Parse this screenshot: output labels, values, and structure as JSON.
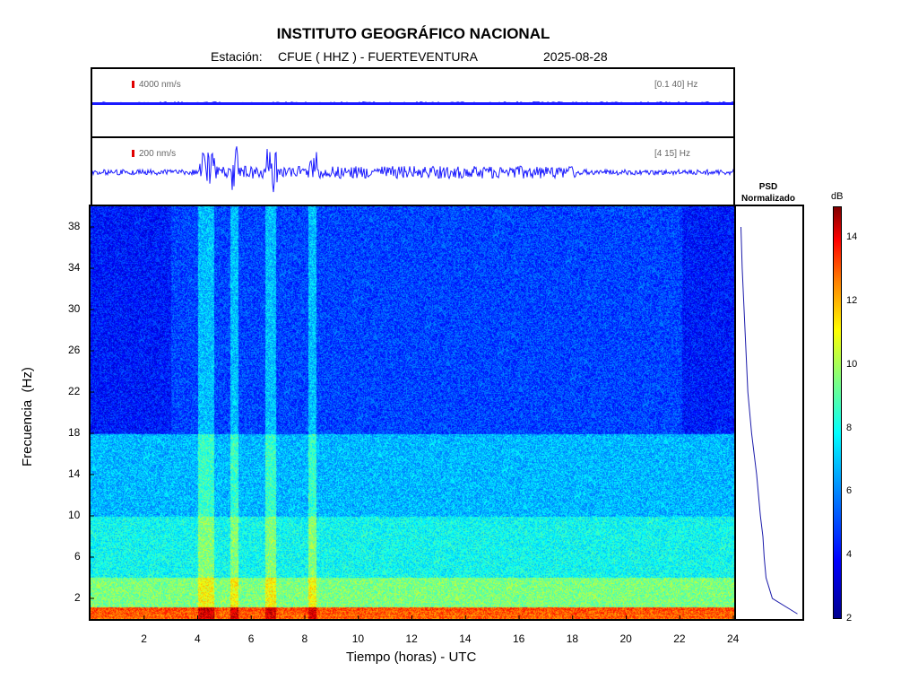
{
  "header": {
    "title": "INSTITUTO GEOGRÁFICO NACIONAL",
    "station_prefix": "Estación:",
    "station": "CFUE ( HHZ ) - FUERTEVENTURA",
    "date": "2025-08-28"
  },
  "trace1": {
    "scale": "4000 nm/s",
    "band": "[0.1 40] Hz"
  },
  "trace2": {
    "scale": "200 nm/s",
    "band": "[4 15] Hz"
  },
  "psd": {
    "line1": "PSD",
    "line2": "Normalizado"
  },
  "colorbar": {
    "unit": "dB",
    "min": 2,
    "max": 15,
    "ticks": [
      "2",
      "4",
      "6",
      "8",
      "10",
      "12",
      "14"
    ]
  },
  "chart_data": {
    "type": "heatmap",
    "title": "INSTITUTO GEOGRÁFICO NACIONAL",
    "xlabel": "Tiempo (horas) - UTC",
    "ylabel": "Frecuencia  (Hz)",
    "xlim": [
      0,
      24
    ],
    "ylim": [
      0,
      40
    ],
    "xticks": [
      "2",
      "4",
      "6",
      "8",
      "10",
      "12",
      "14",
      "16",
      "18",
      "20",
      "22",
      "24"
    ],
    "yticks": [
      "2",
      "6",
      "10",
      "14",
      "18",
      "22",
      "26",
      "30",
      "34",
      "38"
    ],
    "spectrogram_bands_db": [
      {
        "freq_range": [
          0,
          1
        ],
        "db": 12
      },
      {
        "freq_range": [
          1,
          4
        ],
        "db": 8.5
      },
      {
        "freq_range": [
          4,
          10
        ],
        "db": 7
      },
      {
        "freq_range": [
          10,
          18
        ],
        "db": 6
      },
      {
        "freq_range": [
          18,
          40
        ],
        "db": 4.5
      }
    ],
    "energetic_intervals_hours": [
      [
        4.0,
        4.6
      ],
      [
        5.2,
        5.5
      ],
      [
        6.5,
        6.9
      ],
      [
        8.1,
        8.4
      ]
    ],
    "psd_normalized": {
      "freq": [
        0.5,
        2,
        4,
        6,
        8,
        10,
        14,
        18,
        22,
        26,
        30,
        34,
        38
      ],
      "value": [
        0.95,
        0.55,
        0.45,
        0.42,
        0.4,
        0.36,
        0.3,
        0.22,
        0.16,
        0.13,
        0.1,
        0.07,
        0.05
      ]
    }
  }
}
